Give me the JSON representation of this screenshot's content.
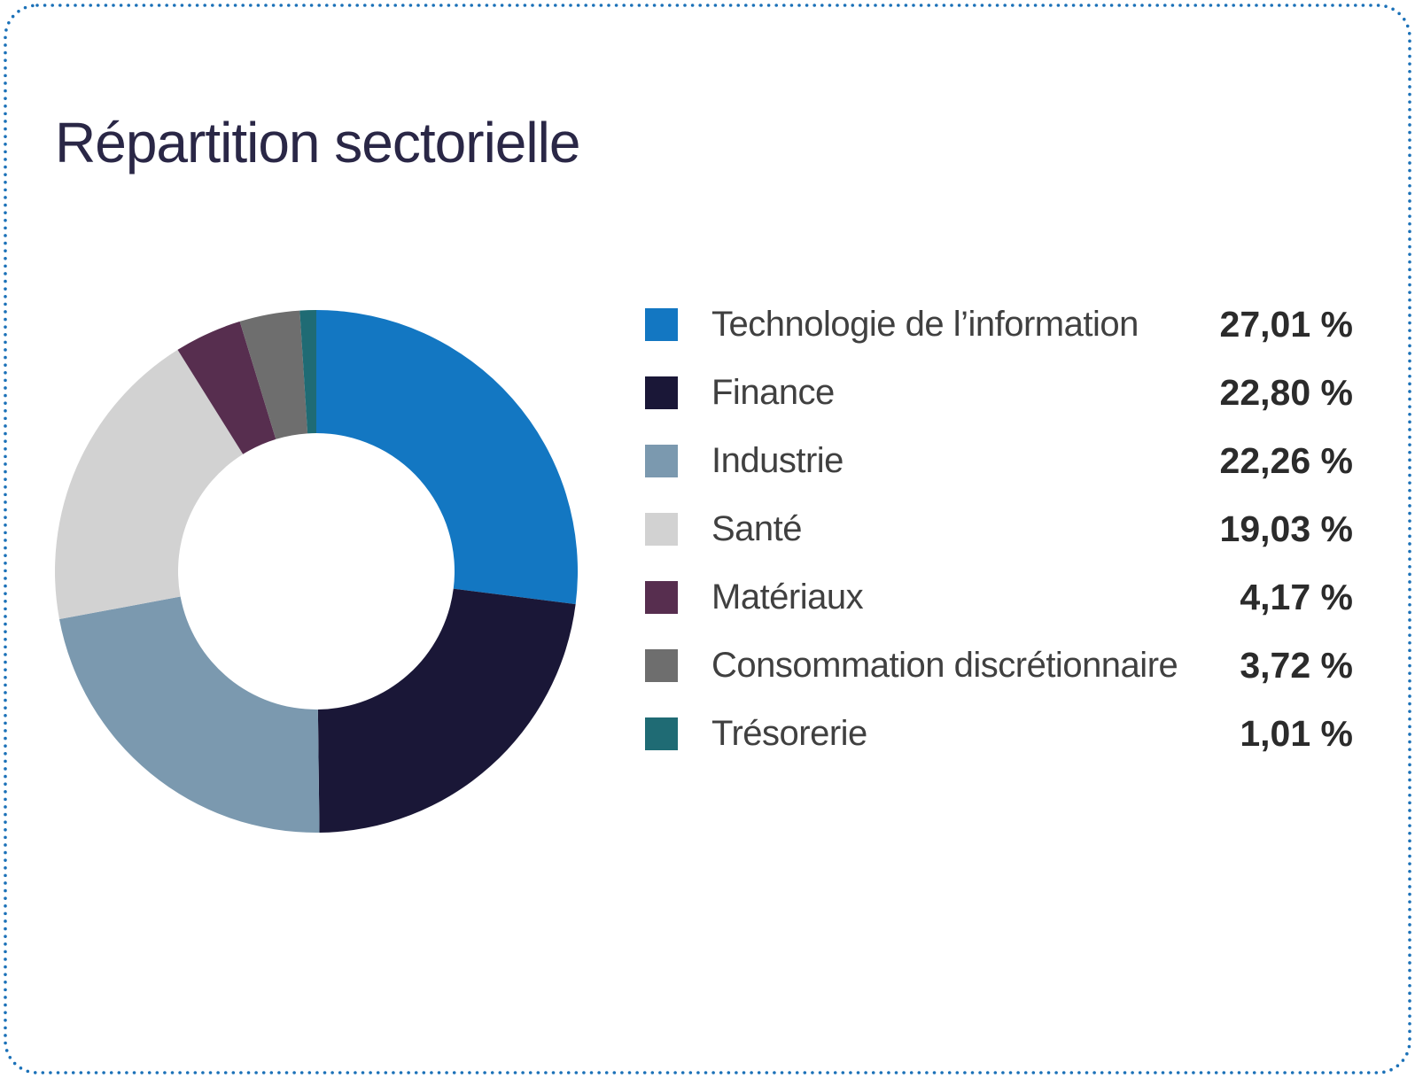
{
  "page": {
    "title": "Répartition sectorielle"
  },
  "colors": {
    "border_dots": "#1b71b8",
    "title_text": "#2a2746",
    "label_text": "#404040",
    "value_text": "#2b2b2b",
    "background": "#ffffff"
  },
  "chart_data": {
    "type": "pie",
    "subtype": "donut",
    "title": "Répartition sectorielle",
    "legend_position": "right",
    "start_angle_deg": 0,
    "direction": "clockwise",
    "inner_radius_ratio": 0.53,
    "categories": [
      "Technologie de l’information",
      "Finance",
      "Industrie",
      "Santé",
      "Matériaux",
      "Consommation discrétionnaire",
      "Trésorerie"
    ],
    "values": [
      27.01,
      22.8,
      22.26,
      19.03,
      4.17,
      3.72,
      1.01
    ],
    "items": [
      {
        "label": "Technologie de l’information",
        "value": 27.01,
        "display": "27,01 %",
        "color": "#1377c2"
      },
      {
        "label": "Finance",
        "value": 22.8,
        "display": "22,80 %",
        "color": "#1a1737"
      },
      {
        "label": "Industrie",
        "value": 22.26,
        "display": "22,26 %",
        "color": "#7b99af"
      },
      {
        "label": "Santé",
        "value": 19.03,
        "display": "19,03 %",
        "color": "#d2d2d2"
      },
      {
        "label": "Matériaux",
        "value": 4.17,
        "display": "4,17 %",
        "color": "#572e4f"
      },
      {
        "label": "Consommation discrétionnaire",
        "value": 3.72,
        "display": "3,72 %",
        "color": "#6e6e6e"
      },
      {
        "label": "Trésorerie",
        "value": 1.01,
        "display": "1,01 %",
        "color": "#1f6b74"
      }
    ]
  }
}
